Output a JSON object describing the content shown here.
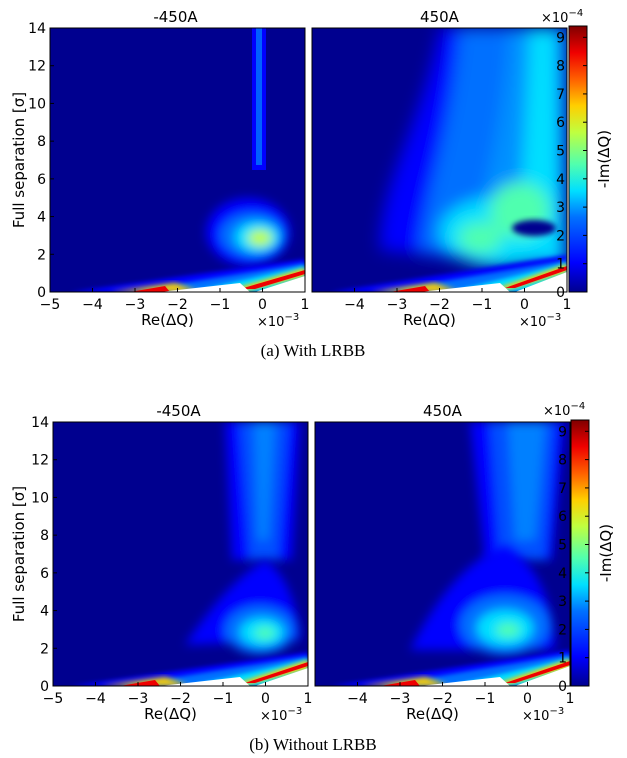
{
  "colormap": [
    "#00008f",
    "#0000ff",
    "#0070ff",
    "#00dfff",
    "#50ffaf",
    "#bfff40",
    "#ffcf00",
    "#ff6000",
    "#ef0000",
    "#800000"
  ],
  "chart_data": [
    {
      "type": "heatmap",
      "caption": "(a) With LRBB",
      "ylabel": "Full separation [σ]",
      "yticks": [
        "0",
        "2",
        "4",
        "6",
        "8",
        "10",
        "12",
        "14"
      ],
      "ylim": [
        0,
        14
      ],
      "colorbar": {
        "label": "-Im(ΔQ)",
        "ticks": [
          "0",
          "1",
          "2",
          "3",
          "4",
          "5",
          "6",
          "7",
          "8",
          "9"
        ],
        "exponent": "×10",
        "exponent_power": "−4",
        "range": [
          0,
          9.4
        ]
      },
      "panels": [
        {
          "title": "-450A",
          "xlabel": "Re(ΔQ)",
          "xticks": [
            "−5",
            "−4",
            "−3",
            "−2",
            "−1",
            "0",
            "1"
          ],
          "xlim": [
            -5,
            1
          ],
          "x_exponent": "×10",
          "x_exponent_power": "−3",
          "features": [
            {
              "name": "tail",
              "x": [
                -5,
                1
              ],
              "y": [
                0,
                1.4
              ],
              "max_value": 9.4
            },
            {
              "name": "core",
              "x": -0.05,
              "y": 3.0,
              "peak_value": 4.6
            },
            {
              "name": "column",
              "x": [
                -0.05,
                0.05
              ],
              "y": [
                4.5,
                14
              ],
              "value": 1.0
            }
          ]
        },
        {
          "title": "450A",
          "xlabel": "Re(ΔQ)",
          "xticks": [
            "−4",
            "−3",
            "−2",
            "−1",
            "0",
            "1"
          ],
          "xlim": [
            -5,
            1
          ],
          "x_exponent": "×10",
          "x_exponent_power": "−3",
          "features": [
            {
              "name": "tail",
              "x": [
                -5,
                1
              ],
              "y": [
                0,
                1.5
              ],
              "max_value": 9.4
            },
            {
              "name": "core",
              "x": -0.4,
              "y": 3.1,
              "peak_value": 4.2
            },
            {
              "name": "plume",
              "x": [
                -4,
                1
              ],
              "y": [
                1.5,
                14
              ],
              "value": 2.5
            }
          ]
        }
      ]
    },
    {
      "type": "heatmap",
      "caption": "(b) Without LRBB",
      "ylabel": "Full separation [σ]",
      "yticks": [
        "0",
        "2",
        "4",
        "6",
        "8",
        "10",
        "12",
        "14"
      ],
      "ylim": [
        0,
        14
      ],
      "colorbar": {
        "label": "-Im(ΔQ)",
        "ticks": [
          "0",
          "1",
          "2",
          "3",
          "4",
          "5",
          "6",
          "7",
          "8",
          "9"
        ],
        "exponent": "×10",
        "exponent_power": "−4",
        "range": [
          0,
          9.4
        ]
      },
      "panels": [
        {
          "title": "-450A",
          "xlabel": "Re(ΔQ)",
          "xticks": [
            "−5",
            "−4",
            "−3",
            "−2",
            "−1",
            "0",
            "1"
          ],
          "xlim": [
            -5,
            1
          ],
          "x_exponent": "×10",
          "x_exponent_power": "−3",
          "features": [
            {
              "name": "tail",
              "x": [
                -5,
                1
              ],
              "y": [
                0,
                1.3
              ],
              "max_value": 9.4
            },
            {
              "name": "core",
              "x": -0.1,
              "y": 2.6,
              "peak_value": 4.4
            },
            {
              "name": "column",
              "x": [
                -1.0,
                0.5
              ],
              "y": [
                4.5,
                14
              ],
              "value": 2.0
            }
          ]
        },
        {
          "title": "450A",
          "xlabel": "Re(ΔQ)",
          "xticks": [
            "−4",
            "−3",
            "−2",
            "−1",
            "0",
            "1"
          ],
          "xlim": [
            -5,
            1
          ],
          "x_exponent": "×10",
          "x_exponent_power": "−3",
          "features": [
            {
              "name": "tail",
              "x": [
                -5,
                1
              ],
              "y": [
                0,
                1.4
              ],
              "max_value": 9.4
            },
            {
              "name": "core",
              "x": -0.3,
              "y": 3.2,
              "peak_value": 3.8
            },
            {
              "name": "column",
              "x": [
                -1.5,
                0.5
              ],
              "y": [
                4.5,
                14
              ],
              "value": 2.0
            }
          ]
        }
      ]
    }
  ]
}
